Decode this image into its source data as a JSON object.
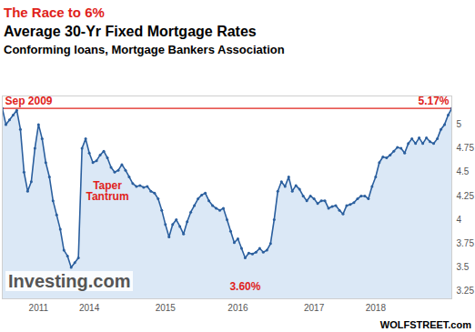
{
  "chart_data": {
    "type": "line",
    "title": "The Race to 6%",
    "title_color": "#e0231b",
    "subtitle": [
      "Average 30-Yr Fixed Mortgage Rates",
      "Conforming loans, Mortgage Bankers Association"
    ],
    "logo": "Investing.com",
    "credit": "WOLFSTREET.com",
    "categories": [
      null,
      null,
      null,
      null,
      null,
      null,
      null,
      null,
      null,
      null,
      "2011",
      null,
      null,
      null,
      null,
      null,
      null,
      null,
      null,
      null,
      null,
      null,
      null,
      null,
      "2014",
      null,
      null,
      null,
      null,
      null,
      null,
      null,
      null,
      null,
      null,
      null,
      null,
      null,
      null,
      null,
      null,
      null,
      null,
      null,
      null,
      "2015",
      null,
      null,
      null,
      null,
      null,
      null,
      null,
      null,
      null,
      null,
      null,
      null,
      null,
      null,
      null,
      null,
      null,
      null,
      null,
      "2016",
      null,
      null,
      null,
      null,
      null,
      null,
      null,
      null,
      null,
      null,
      null,
      null,
      null,
      null,
      null,
      null,
      null,
      null,
      null,
      null,
      "2017",
      null,
      null,
      null,
      null,
      null,
      null,
      null,
      null,
      null,
      null,
      null,
      null,
      null,
      null,
      null,
      null,
      "2018",
      null,
      null,
      null,
      null,
      null,
      null,
      null,
      null,
      null,
      null,
      null,
      null,
      null,
      null,
      null,
      null,
      null,
      null,
      null,
      null,
      null
    ],
    "values": [
      5.17,
      5.0,
      5.05,
      5.1,
      5.15,
      4.95,
      4.5,
      4.3,
      4.4,
      4.75,
      5.0,
      4.85,
      4.6,
      4.45,
      4.2,
      4.05,
      3.9,
      3.68,
      3.62,
      3.5,
      3.55,
      3.6,
      4.75,
      4.85,
      4.7,
      4.6,
      4.62,
      4.68,
      4.72,
      4.65,
      4.55,
      4.5,
      4.52,
      4.58,
      4.52,
      4.45,
      4.38,
      4.35,
      4.36,
      4.34,
      4.35,
      4.3,
      4.28,
      4.22,
      4.1,
      3.95,
      3.82,
      3.95,
      4.0,
      3.93,
      3.85,
      3.98,
      4.08,
      4.15,
      4.22,
      4.26,
      4.28,
      4.2,
      4.15,
      4.12,
      4.1,
      4.12,
      4.0,
      3.88,
      3.76,
      3.8,
      3.7,
      3.6,
      3.65,
      3.64,
      3.66,
      3.7,
      3.66,
      3.68,
      3.75,
      4.0,
      4.3,
      4.4,
      4.35,
      4.45,
      4.3,
      4.36,
      4.32,
      4.25,
      4.2,
      4.25,
      4.22,
      4.17,
      4.2,
      4.2,
      4.12,
      4.14,
      4.15,
      4.1,
      4.06,
      4.15,
      4.16,
      4.18,
      4.22,
      4.25,
      4.25,
      4.22,
      4.35,
      4.45,
      4.6,
      4.66,
      4.65,
      4.68,
      4.72,
      4.76,
      4.75,
      4.7,
      4.8,
      4.85,
      4.8,
      4.86,
      4.8,
      4.86,
      4.82,
      4.8,
      4.85,
      4.95,
      5.0,
      5.1,
      5.17
    ],
    "color": "#2b5f9e",
    "marker": "dot",
    "ylim": [
      3.17,
      5.3
    ],
    "yticks": [
      3.25,
      3.5,
      3.75,
      4,
      4.25,
      4.5,
      4.75,
      5
    ],
    "grid": false,
    "hline": {
      "value": 5.17,
      "color": "#e0231b"
    },
    "annotations": [
      {
        "text": "Sep 2009",
        "x": 0,
        "y": 5.25
      },
      {
        "text": "5.17%",
        "x": 124,
        "y": 5.25
      },
      {
        "text": "Taper Tantrum",
        "x": 29,
        "y": 4.3
      },
      {
        "text": "3.60%",
        "x": 67,
        "y": 3.3
      }
    ],
    "annotation_color": "#e0231b"
  }
}
